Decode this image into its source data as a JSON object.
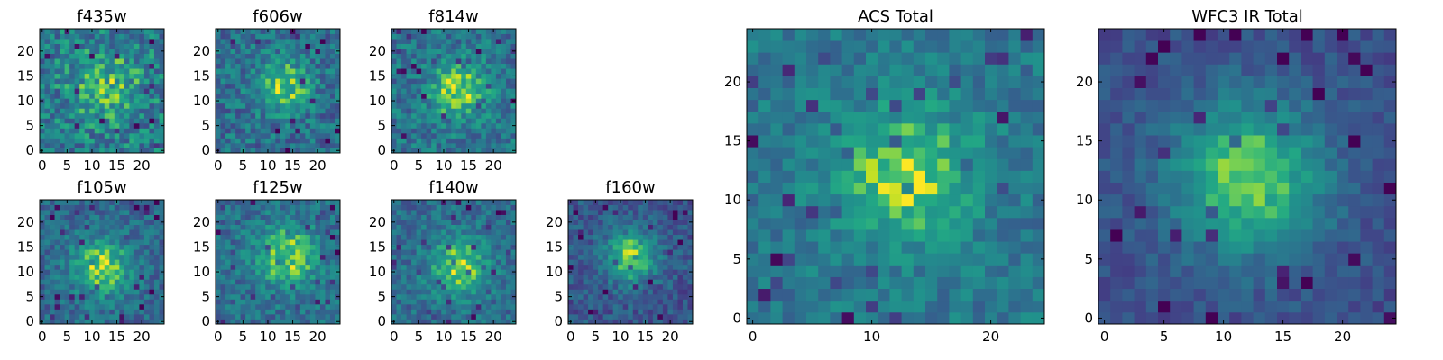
{
  "chart_data": [
    {
      "type": "heatmap",
      "title": "f435w",
      "size": 25,
      "xticks": [
        0,
        5,
        10,
        15,
        20
      ],
      "yticks": [
        0,
        5,
        10,
        15,
        20
      ],
      "xlim": [
        0,
        24
      ],
      "ylim": [
        0,
        24
      ],
      "center": [
        13,
        13
      ],
      "sigma": 5.0,
      "peak": 0.25,
      "noise": 0.48,
      "base": 0.52
    },
    {
      "type": "heatmap",
      "title": "f606w",
      "size": 25,
      "xticks": [
        0,
        5,
        10,
        15,
        20
      ],
      "yticks": [
        0,
        5,
        10,
        15,
        20
      ],
      "xlim": [
        0,
        24
      ],
      "ylim": [
        0,
        24
      ],
      "center": [
        13,
        13
      ],
      "sigma": 3.8,
      "peak": 0.45,
      "noise": 0.42,
      "base": 0.45
    },
    {
      "type": "heatmap",
      "title": "f814w",
      "size": 25,
      "xticks": [
        0,
        5,
        10,
        15,
        20
      ],
      "yticks": [
        0,
        5,
        10,
        15,
        20
      ],
      "xlim": [
        0,
        24
      ],
      "ylim": [
        0,
        24
      ],
      "center": [
        13,
        12
      ],
      "sigma": 4.0,
      "peak": 0.42,
      "noise": 0.38,
      "base": 0.48
    },
    {
      "type": "heatmap",
      "title": "f105w",
      "size": 25,
      "xticks": [
        0,
        5,
        10,
        15,
        20
      ],
      "yticks": [
        0,
        5,
        10,
        15,
        20
      ],
      "xlim": [
        0,
        24
      ],
      "ylim": [
        0,
        24
      ],
      "center": [
        12,
        11
      ],
      "sigma": 4.2,
      "peak": 0.48,
      "noise": 0.32,
      "base": 0.42
    },
    {
      "type": "heatmap",
      "title": "f125w",
      "size": 25,
      "xticks": [
        0,
        5,
        10,
        15,
        20
      ],
      "yticks": [
        0,
        5,
        10,
        15,
        20
      ],
      "xlim": [
        0,
        24
      ],
      "ylim": [
        0,
        24
      ],
      "center": [
        14,
        13
      ],
      "sigma": 4.5,
      "peak": 0.45,
      "noise": 0.34,
      "base": 0.45
    },
    {
      "type": "heatmap",
      "title": "f140w",
      "size": 25,
      "xticks": [
        0,
        5,
        10,
        15,
        20
      ],
      "yticks": [
        0,
        5,
        10,
        15,
        20
      ],
      "xlim": [
        0,
        24
      ],
      "ylim": [
        0,
        24
      ],
      "center": [
        13,
        11
      ],
      "sigma": 4.2,
      "peak": 0.45,
      "noise": 0.32,
      "base": 0.44
    },
    {
      "type": "heatmap",
      "title": "f160w",
      "size": 25,
      "xticks": [
        0,
        5,
        10,
        15,
        20
      ],
      "yticks": [
        0,
        5,
        10,
        15,
        20
      ],
      "xlim": [
        0,
        24
      ],
      "ylim": [
        0,
        24
      ],
      "center": [
        12,
        13
      ],
      "sigma": 3.6,
      "peak": 0.58,
      "noise": 0.3,
      "base": 0.34
    },
    {
      "type": "heatmap",
      "title": "ACS Total",
      "size": 25,
      "xticks": [
        0,
        10,
        20
      ],
      "yticks": [
        0,
        5,
        10,
        15,
        20
      ],
      "xlim": [
        0,
        24
      ],
      "ylim": [
        0,
        24
      ],
      "center": [
        13,
        12
      ],
      "sigma": 4.0,
      "peak": 0.42,
      "noise": 0.28,
      "base": 0.5
    },
    {
      "type": "heatmap",
      "title": "WFC3 IR Total",
      "size": 25,
      "xticks": [
        0,
        5,
        10,
        15,
        20
      ],
      "yticks": [
        0,
        5,
        10,
        15,
        20
      ],
      "xlim": [
        0,
        24
      ],
      "ylim": [
        0,
        24
      ],
      "center": [
        12,
        12
      ],
      "sigma": 4.6,
      "peak": 0.6,
      "noise": 0.2,
      "base": 0.3
    }
  ]
}
